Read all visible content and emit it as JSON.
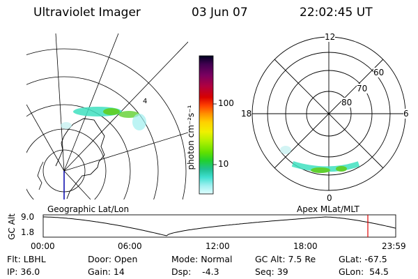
{
  "header": {
    "title": "Ultraviolet Imager",
    "date": "03 Jun 07",
    "time": "22:02:45 UT"
  },
  "colorbar": {
    "unit_label": "photon cm⁻²s⁻¹",
    "ticks": [
      "100",
      "10"
    ],
    "colors": [
      "#000020",
      "#400050",
      "#7a0060",
      "#b00040",
      "#d80000",
      "#ff4000",
      "#ff9000",
      "#ffd000",
      "#f0f000",
      "#b0f000",
      "#60e000",
      "#20d030",
      "#20c090",
      "#40e0d0",
      "#a0f0f0",
      "#e0ffff"
    ]
  },
  "geo_panel": {
    "label": "Geographic Lat/Lon"
  },
  "polar_panel": {
    "label": "Apex MLat/MLT",
    "mlt_labels": {
      "top": "12",
      "left": "18",
      "right": "6",
      "bottom": "0"
    },
    "lat_labels": [
      "60",
      "70",
      "80"
    ]
  },
  "altitude_plot": {
    "ylabel": "GC Alt",
    "yticks": [
      "9.0",
      "1.8"
    ],
    "xticks": [
      "00:00",
      "06:00",
      "12:00",
      "18:00",
      "23:59"
    ],
    "current_marker_color": "#dd0000"
  },
  "info": {
    "flt": "Flt: LBHL",
    "door": "Door: Open",
    "mode": "Mode: Normal",
    "gc_alt": "GC Alt: 7.5 Re",
    "glat": "GLat:  -67.5",
    "ip": "IP: 36.0",
    "gain": "Gain: 14",
    "dsp": "Dsp:    -4.3",
    "seq": "Seq: 39",
    "glon": "GLon:  54.5"
  }
}
